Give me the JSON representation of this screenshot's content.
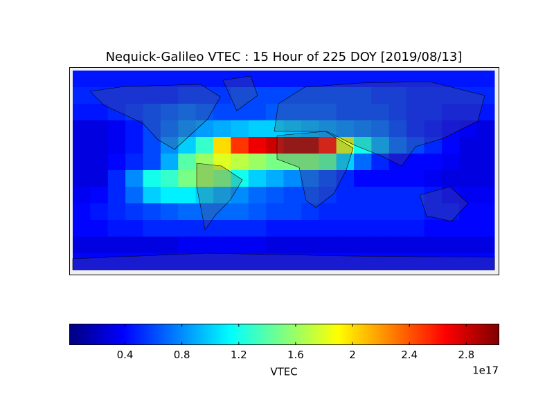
{
  "chart_data": {
    "type": "heatmap",
    "title": "Nequick-Galileo VTEC : 15 Hour of 225 DOY [2019/08/13]",
    "xlim": [
      -180,
      180
    ],
    "ylim": [
      -90,
      90
    ],
    "colormap": "jet",
    "z": [
      [
        0.45,
        0.45,
        0.45,
        0.45,
        0.45,
        0.45,
        0.45,
        0.45,
        0.45,
        0.45,
        0.45,
        0.45,
        0.45,
        0.45,
        0.45,
        0.45,
        0.45,
        0.45,
        0.45,
        0.45,
        0.45,
        0.45,
        0.45,
        0.45
      ],
      [
        0.5,
        0.5,
        0.5,
        0.5,
        0.5,
        0.5,
        0.55,
        0.55,
        0.55,
        0.6,
        0.6,
        0.6,
        0.6,
        0.6,
        0.6,
        0.6,
        0.6,
        0.55,
        0.55,
        0.5,
        0.5,
        0.5,
        0.5,
        0.5
      ],
      [
        0.45,
        0.45,
        0.5,
        0.55,
        0.6,
        0.65,
        0.7,
        0.65,
        0.6,
        0.6,
        0.6,
        0.65,
        0.65,
        0.65,
        0.65,
        0.6,
        0.6,
        0.6,
        0.55,
        0.5,
        0.5,
        0.45,
        0.45,
        0.45
      ],
      [
        0.3,
        0.3,
        0.35,
        0.45,
        0.6,
        0.7,
        0.8,
        0.85,
        0.9,
        0.95,
        1.0,
        1.0,
        0.95,
        0.9,
        0.85,
        0.8,
        0.75,
        0.7,
        0.6,
        0.5,
        0.45,
        0.4,
        0.35,
        0.3
      ],
      [
        0.3,
        0.3,
        0.35,
        0.45,
        0.6,
        0.8,
        1.0,
        1.3,
        2.0,
        2.5,
        2.7,
        2.8,
        2.9,
        2.9,
        2.6,
        1.8,
        1.2,
        0.9,
        0.7,
        0.6,
        0.5,
        0.4,
        0.3,
        0.3
      ],
      [
        0.3,
        0.3,
        0.4,
        0.5,
        0.6,
        0.9,
        1.4,
        1.6,
        1.8,
        1.7,
        1.6,
        1.5,
        1.5,
        1.5,
        1.4,
        1.0,
        0.7,
        0.5,
        0.4,
        0.4,
        0.4,
        0.35,
        0.3,
        0.3
      ],
      [
        0.3,
        0.3,
        0.5,
        0.8,
        1.2,
        1.3,
        1.5,
        1.6,
        1.5,
        1.2,
        1.0,
        0.9,
        0.8,
        0.7,
        0.6,
        0.5,
        0.4,
        0.4,
        0.4,
        0.4,
        0.35,
        0.3,
        0.3,
        0.3
      ],
      [
        0.35,
        0.4,
        0.5,
        0.7,
        1.0,
        1.1,
        1.1,
        1.0,
        0.9,
        0.8,
        0.7,
        0.65,
        0.6,
        0.6,
        0.55,
        0.5,
        0.5,
        0.5,
        0.5,
        0.5,
        0.45,
        0.4,
        0.35,
        0.35
      ],
      [
        0.4,
        0.45,
        0.5,
        0.55,
        0.6,
        0.65,
        0.7,
        0.7,
        0.7,
        0.7,
        0.65,
        0.6,
        0.6,
        0.55,
        0.5,
        0.5,
        0.5,
        0.5,
        0.5,
        0.5,
        0.45,
        0.45,
        0.4,
        0.4
      ],
      [
        0.4,
        0.4,
        0.45,
        0.45,
        0.5,
        0.5,
        0.5,
        0.5,
        0.5,
        0.5,
        0.5,
        0.45,
        0.45,
        0.45,
        0.45,
        0.45,
        0.45,
        0.45,
        0.45,
        0.45,
        0.4,
        0.4,
        0.4,
        0.4
      ],
      [
        0.3,
        0.3,
        0.3,
        0.3,
        0.3,
        0.3,
        0.35,
        0.35,
        0.35,
        0.35,
        0.35,
        0.3,
        0.3,
        0.3,
        0.3,
        0.3,
        0.3,
        0.3,
        0.3,
        0.3,
        0.3,
        0.3,
        0.3,
        0.3
      ],
      [
        0.4,
        0.4,
        0.4,
        0.4,
        0.4,
        0.4,
        0.4,
        0.4,
        0.4,
        0.4,
        0.4,
        0.4,
        0.4,
        0.4,
        0.4,
        0.4,
        0.4,
        0.4,
        0.4,
        0.4,
        0.4,
        0.4,
        0.4,
        0.4
      ]
    ],
    "colorbar": {
      "label": "VTEC",
      "offset_text": "1e17",
      "lim": [
        0.01,
        3.03
      ],
      "ticks": [
        0.4,
        0.8,
        1.2,
        1.6,
        2.0,
        2.4,
        2.8
      ]
    }
  }
}
